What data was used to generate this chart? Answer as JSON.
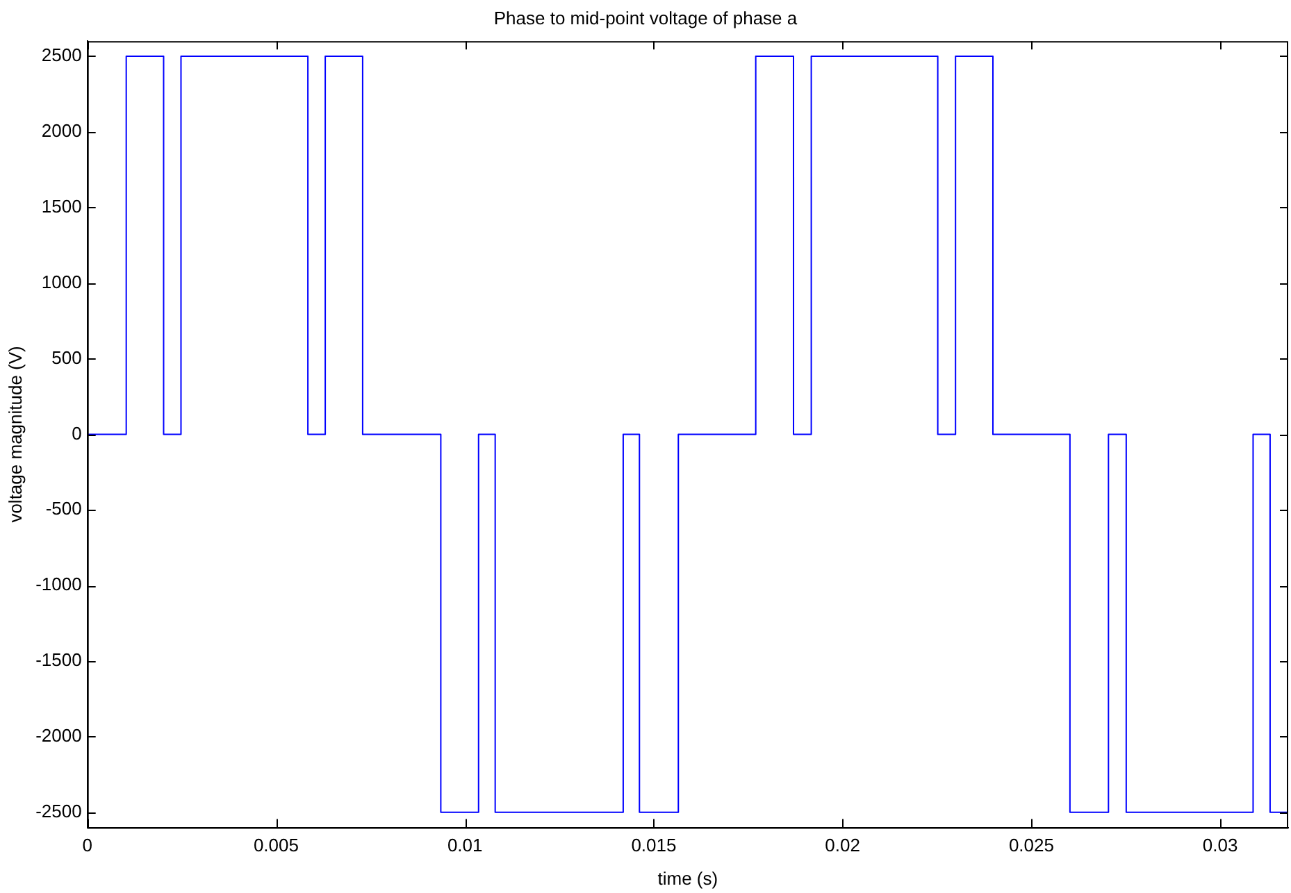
{
  "chart_data": {
    "type": "step",
    "title": "Phase to mid-point voltage of phase a",
    "xlabel": "time (s)",
    "ylabel": "voltage magnitude (V)",
    "x": [
      0,
      0.00103,
      0.00202,
      0.00248,
      0.00584,
      0.0063,
      0.00729,
      0.00936,
      0.01036,
      0.0108,
      0.01419,
      0.01462,
      0.01565,
      0.0177,
      0.0187,
      0.01917,
      0.02252,
      0.02299,
      0.02398,
      0.02602,
      0.02704,
      0.02751,
      0.03087,
      0.03132,
      0.0318
    ],
    "series": [
      {
        "color": "#0000ff",
        "values": [
          0,
          2500,
          0,
          2500,
          0,
          2500,
          0,
          -2500,
          0,
          -2500,
          0,
          -2500,
          0,
          2500,
          0,
          2500,
          0,
          2500,
          0,
          -2500,
          0,
          -2500,
          0,
          -2500,
          -2500
        ]
      }
    ],
    "xlim": [
      0,
      0.0318
    ],
    "xticks": [
      0,
      0.005,
      0.01,
      0.015,
      0.02,
      0.025,
      0.03
    ],
    "ylim": [
      -2600,
      2600
    ],
    "yticks": [
      -2500,
      -2000,
      -1500,
      -1000,
      -500,
      0,
      500,
      1000,
      1500,
      2000,
      2500
    ],
    "grid": false,
    "legend": false,
    "marker": "none"
  }
}
